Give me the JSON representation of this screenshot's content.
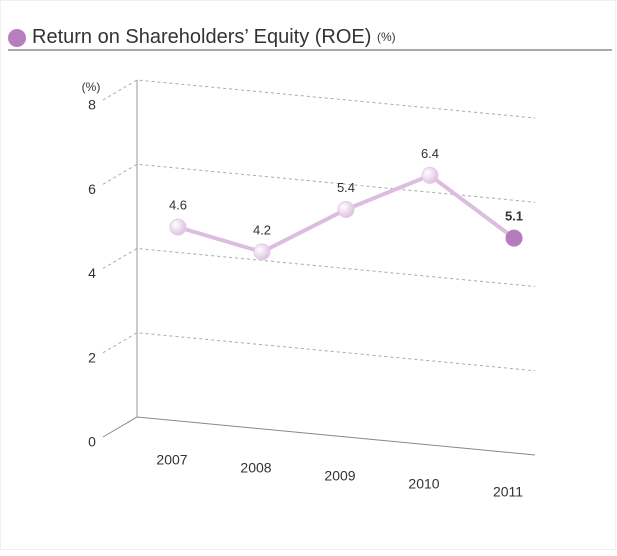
{
  "chart_data": {
    "type": "line",
    "title": "Return on Shareholders’ Equity (ROE)",
    "subtitle": "(%)",
    "y_label": "(%)",
    "categories": [
      "2007",
      "2008",
      "2009",
      "2010",
      "2011"
    ],
    "series": [
      {
        "name": "ROE",
        "color": "#dcbde0",
        "values": [
          4.6,
          4.2,
          5.4,
          6.4,
          5.1
        ]
      }
    ],
    "point_colors": [
      "#e4cbe7",
      "#e4cbe7",
      "#e4cbe7",
      "#e4cbe7",
      "#b57cbd"
    ],
    "ylim": [
      0,
      8
    ],
    "yticks": [
      0,
      2,
      4,
      6,
      8
    ],
    "grid": true
  }
}
